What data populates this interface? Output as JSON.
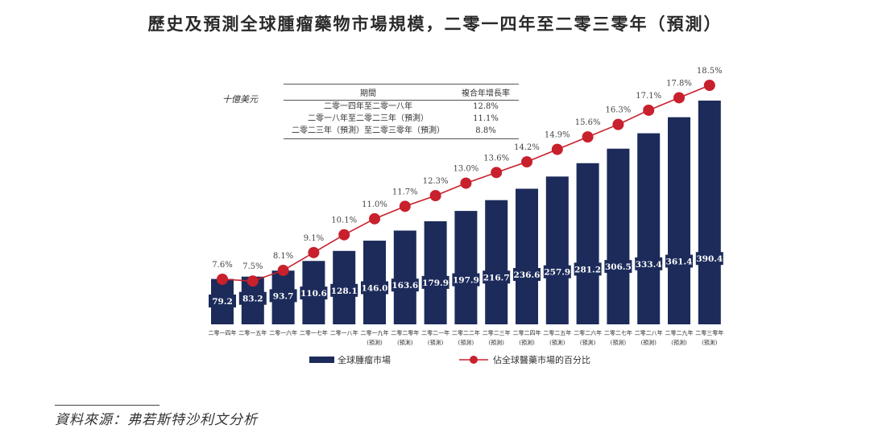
{
  "chart_data": {
    "type": "bar",
    "title": "歷史及預測全球腫瘤藥物市場規模，二零一四年至二零三零年（預測）",
    "unit_label": "十億美元",
    "categories": [
      [
        "二零一四年",
        ""
      ],
      [
        "二零一五年",
        ""
      ],
      [
        "二零一六年",
        ""
      ],
      [
        "二零一七年",
        ""
      ],
      [
        "二零一八年",
        ""
      ],
      [
        "二零一九年",
        "(預測)"
      ],
      [
        "二零二零年",
        "(預測)"
      ],
      [
        "二零二一年",
        "(預測)"
      ],
      [
        "二零二二年",
        "(預測)"
      ],
      [
        "二零二三年",
        "(預測)"
      ],
      [
        "二零二四年",
        "(預測)"
      ],
      [
        "二零二五年",
        "(預測)"
      ],
      [
        "二零二六年",
        "(預測)"
      ],
      [
        "二零二七年",
        "(預測)"
      ],
      [
        "二零二八年",
        "(預測)"
      ],
      [
        "二零二九年",
        "(預測)"
      ],
      [
        "二零三零年",
        "(預測)"
      ]
    ],
    "series": [
      {
        "name": "全球腫瘤市場",
        "type": "bar",
        "color": "#1c2b5a",
        "values": [
          79.2,
          83.2,
          93.7,
          110.6,
          128.1,
          146.0,
          163.6,
          179.9,
          197.9,
          216.7,
          236.6,
          257.9,
          281.2,
          306.5,
          333.4,
          361.4,
          390.4
        ],
        "labels": [
          "79.2",
          "83.2",
          "93.7",
          "110.6",
          "128.1",
          "146.0",
          "163.6",
          "179.9",
          "197.9",
          "216.7",
          "236.6",
          "257.9",
          "281.2",
          "306.5",
          "333.4",
          "361.4",
          "390.4"
        ]
      },
      {
        "name": "佔全球醫藥市場的百分比",
        "type": "line",
        "color": "#c8202c",
        "values": [
          7.6,
          7.5,
          8.1,
          9.1,
          10.1,
          11.0,
          11.7,
          12.3,
          13.0,
          13.6,
          14.2,
          14.9,
          15.6,
          16.3,
          17.1,
          17.8,
          18.5
        ],
        "labels": [
          "7.6%",
          "7.5%",
          "8.1%",
          "9.1%",
          "10.1%",
          "11.0%",
          "11.7%",
          "12.3%",
          "13.0%",
          "13.6%",
          "14.2%",
          "14.9%",
          "15.6%",
          "16.3%",
          "17.1%",
          "17.8%",
          "18.5%"
        ]
      }
    ],
    "xlabel": "",
    "ylabel": "十億美元",
    "grid": false,
    "legend_position": "bottom"
  },
  "cagr_table": {
    "headers": [
      "期間",
      "複合年增長率"
    ],
    "rows": [
      [
        "二零一四年至二零一八年",
        "12.8%"
      ],
      [
        "二零一八年至二零二三年（預測）",
        "11.1%"
      ],
      [
        "二零二三年（預測）至二零三零年（預測）",
        "8.8%"
      ]
    ]
  },
  "legend": {
    "bar_label": "全球腫瘤市場",
    "line_label": "佔全球醫藥市場的百分比"
  },
  "source": "資料來源：弗若斯特沙利文分析"
}
